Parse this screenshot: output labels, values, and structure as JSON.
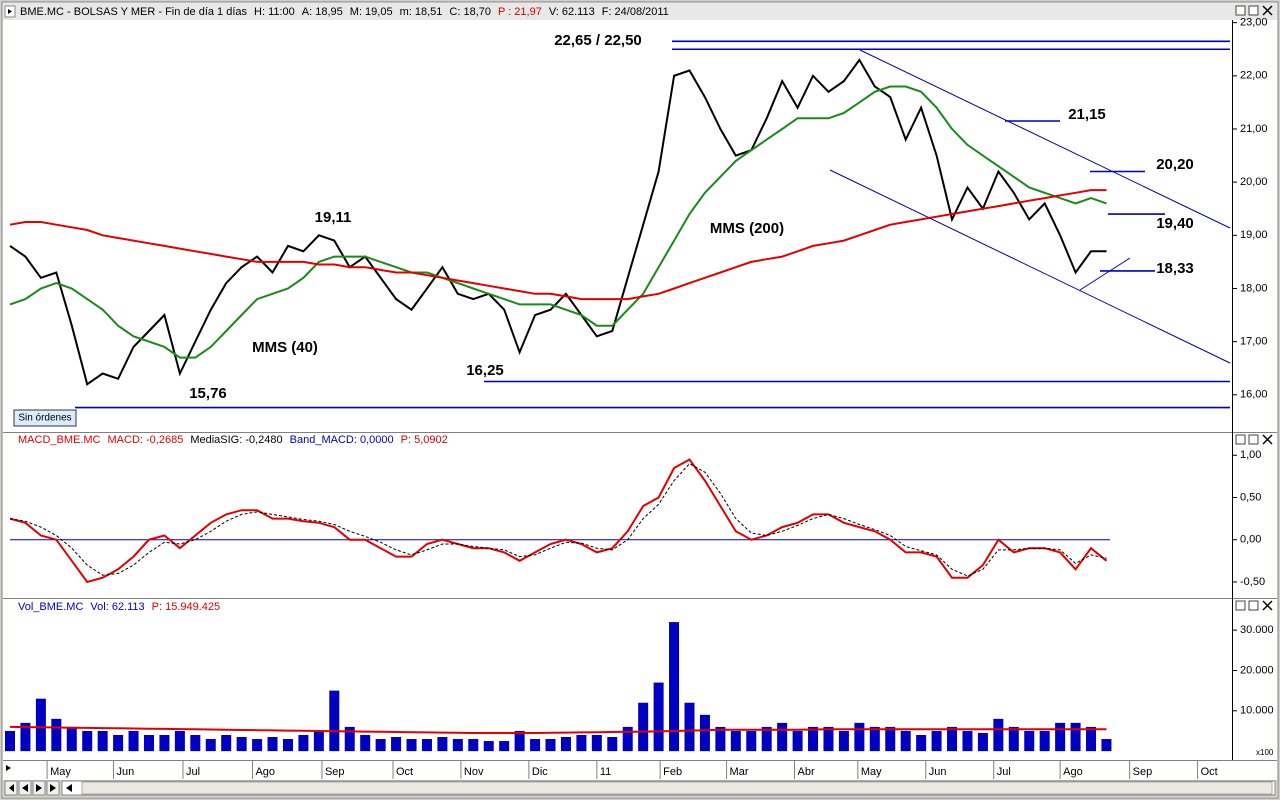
{
  "chart_data": [
    {
      "type": "line",
      "header": [
        {
          "text": "BME.MC - BOLSAS Y MER - Fin de día 1 días",
          "color": "#000000"
        },
        {
          "text": "H: 11:00",
          "color": "#000000"
        },
        {
          "text": "A: 18,95",
          "color": "#000000"
        },
        {
          "text": "M: 19,05",
          "color": "#000000"
        },
        {
          "text": "m: 18,51",
          "color": "#000000"
        },
        {
          "text": "C: 18,70",
          "color": "#000000"
        },
        {
          "text": "P : 21,97",
          "color": "#e00000"
        },
        {
          "text": "V: 62.113",
          "color": "#000000"
        },
        {
          "text": "F: 24/08/2011",
          "color": "#000000"
        }
      ],
      "x": [
        0,
        1,
        2,
        3,
        4,
        5,
        6,
        7,
        8,
        9,
        10,
        11,
        12,
        13,
        14,
        15,
        16,
        17,
        18,
        19,
        20,
        21,
        22,
        23,
        24,
        25,
        26,
        27,
        28,
        29,
        30,
        31,
        32,
        33,
        34,
        35,
        36,
        37,
        38,
        39,
        40,
        41,
        42,
        43,
        44,
        45,
        46,
        47,
        48,
        49,
        50,
        51,
        52,
        53,
        54,
        55,
        56,
        57,
        58,
        59,
        60,
        61,
        62,
        63,
        64,
        65,
        66,
        67,
        68,
        69,
        70,
        71
      ],
      "xlim": [
        0,
        79
      ],
      "ylim": [
        15.3,
        23.05
      ],
      "yticks": [
        {
          "value": 16,
          "label": "16,00"
        },
        {
          "value": 17,
          "label": "17,00"
        },
        {
          "value": 18,
          "label": "18,00"
        },
        {
          "value": 19,
          "label": "19,00"
        },
        {
          "value": 20,
          "label": "20,00"
        },
        {
          "value": 21,
          "label": "21,00"
        },
        {
          "value": 22,
          "label": "22,00"
        },
        {
          "value": 23,
          "label": "23,00"
        }
      ],
      "series": [
        {
          "color": "#000000",
          "values": [
            18.8,
            18.6,
            18.2,
            18.3,
            17.3,
            16.2,
            16.4,
            16.3,
            16.9,
            17.2,
            17.5,
            16.4,
            17.0,
            17.6,
            18.1,
            18.4,
            18.6,
            18.3,
            18.8,
            18.7,
            19.0,
            18.9,
            18.4,
            18.6,
            18.2,
            17.8,
            17.6,
            18.0,
            18.4,
            17.9,
            17.8,
            17.9,
            17.6,
            16.8,
            17.5,
            17.6,
            17.9,
            17.5,
            17.1,
            17.2,
            18.2,
            19.2,
            20.2,
            22.0,
            22.1,
            21.6,
            21.0,
            20.5,
            20.6,
            21.2,
            21.9,
            21.4,
            22.0,
            21.7,
            21.9,
            22.3,
            21.8,
            21.6,
            20.8,
            21.4,
            20.5,
            19.3,
            19.9,
            19.5,
            20.2,
            19.8,
            19.3,
            19.6,
            19.0,
            18.3,
            18.7,
            18.7
          ]
        },
        {
          "name": "MMS (40)",
          "color": "#1a8a1a",
          "values": [
            17.7,
            17.8,
            18.0,
            18.1,
            18.0,
            17.8,
            17.6,
            17.3,
            17.1,
            17.0,
            16.9,
            16.7,
            16.7,
            16.9,
            17.2,
            17.5,
            17.8,
            17.9,
            18.0,
            18.2,
            18.5,
            18.6,
            18.6,
            18.6,
            18.5,
            18.4,
            18.3,
            18.3,
            18.2,
            18.1,
            18.0,
            17.9,
            17.8,
            17.7,
            17.7,
            17.7,
            17.6,
            17.5,
            17.3,
            17.3,
            17.6,
            17.9,
            18.4,
            18.9,
            19.4,
            19.8,
            20.1,
            20.4,
            20.6,
            20.8,
            21.0,
            21.2,
            21.2,
            21.2,
            21.3,
            21.5,
            21.7,
            21.8,
            21.8,
            21.7,
            21.4,
            21.0,
            20.7,
            20.5,
            20.3,
            20.1,
            19.9,
            19.8,
            19.7,
            19.6,
            19.7,
            19.6
          ]
        },
        {
          "name": "MMS (200)",
          "color": "#e00000",
          "values": [
            19.2,
            19.25,
            19.25,
            19.2,
            19.15,
            19.1,
            19.0,
            18.95,
            18.9,
            18.85,
            18.8,
            18.75,
            18.7,
            18.65,
            18.6,
            18.55,
            18.5,
            18.5,
            18.5,
            18.5,
            18.45,
            18.45,
            18.4,
            18.4,
            18.35,
            18.3,
            18.3,
            18.25,
            18.2,
            18.15,
            18.1,
            18.05,
            18.0,
            17.95,
            17.9,
            17.9,
            17.85,
            17.8,
            17.8,
            17.8,
            17.8,
            17.85,
            17.9,
            18.0,
            18.1,
            18.2,
            18.3,
            18.4,
            18.5,
            18.55,
            18.6,
            18.7,
            18.8,
            18.85,
            18.9,
            19.0,
            19.1,
            19.2,
            19.25,
            19.3,
            19.35,
            19.4,
            19.45,
            19.5,
            19.55,
            19.6,
            19.65,
            19.7,
            19.75,
            19.8,
            19.85,
            19.85
          ]
        }
      ],
      "levels": [
        22.65,
        22.5,
        21.15,
        20.2,
        19.4,
        18.33,
        16.25,
        15.76
      ],
      "annotations": [
        "22,65 / 22,50",
        "21,15",
        "20,20",
        "19,40",
        "18,33",
        "19,11",
        "16,25",
        "15,76"
      ],
      "button": "Sin órdenes"
    },
    {
      "type": "line",
      "header": [
        {
          "text": "MACD_BME.MC",
          "color": "#e00000"
        },
        {
          "text": "MACD: -0,2685",
          "color": "#e00000"
        },
        {
          "text": "MediaSIG: -0,2480",
          "color": "#000000"
        },
        {
          "text": "Band_MACD: 0,0000",
          "color": "#0000c0"
        },
        {
          "text": "P: 5,0902",
          "color": "#e00000"
        }
      ],
      "x": [
        0,
        1,
        2,
        3,
        4,
        5,
        6,
        7,
        8,
        9,
        10,
        11,
        12,
        13,
        14,
        15,
        16,
        17,
        18,
        19,
        20,
        21,
        22,
        23,
        24,
        25,
        26,
        27,
        28,
        29,
        30,
        31,
        32,
        33,
        34,
        35,
        36,
        37,
        38,
        39,
        40,
        41,
        42,
        43,
        44,
        45,
        46,
        47,
        48,
        49,
        50,
        51,
        52,
        53,
        54,
        55,
        56,
        57,
        58,
        59,
        60,
        61,
        62,
        63,
        64,
        65,
        66,
        67,
        68,
        69,
        70,
        71
      ],
      "xlim": [
        0,
        79
      ],
      "ylim": [
        -0.69,
        1.11
      ],
      "yticks": [
        {
          "value": -0.5,
          "label": "-0,50"
        },
        {
          "value": 0,
          "label": "0,00"
        },
        {
          "value": 0.5,
          "label": "0,50"
        },
        {
          "value": 1,
          "label": "1,00"
        }
      ],
      "band": 0,
      "band_color": "#0000c0",
      "series": [
        {
          "color": "#e00000",
          "values": [
            0.25,
            0.2,
            0.05,
            0.0,
            -0.25,
            -0.5,
            -0.45,
            -0.35,
            -0.2,
            0.0,
            0.05,
            -0.1,
            0.05,
            0.2,
            0.3,
            0.35,
            0.35,
            0.25,
            0.25,
            0.22,
            0.2,
            0.15,
            0.0,
            0.0,
            -0.1,
            -0.2,
            -0.2,
            -0.05,
            0.0,
            -0.05,
            -0.1,
            -0.1,
            -0.15,
            -0.25,
            -0.15,
            -0.05,
            0.0,
            -0.05,
            -0.15,
            -0.1,
            0.1,
            0.4,
            0.5,
            0.85,
            0.95,
            0.7,
            0.4,
            0.1,
            0.0,
            0.05,
            0.15,
            0.2,
            0.3,
            0.3,
            0.2,
            0.15,
            0.1,
            0.0,
            -0.15,
            -0.15,
            -0.2,
            -0.45,
            -0.45,
            -0.3,
            0.0,
            -0.15,
            -0.1,
            -0.1,
            -0.15,
            -0.35,
            -0.1,
            -0.25
          ]
        },
        {
          "color": "#000000",
          "style": "dashed",
          "values": [
            0.25,
            0.22,
            0.15,
            0.05,
            -0.1,
            -0.3,
            -0.42,
            -0.4,
            -0.3,
            -0.15,
            -0.03,
            -0.05,
            0.0,
            0.1,
            0.22,
            0.3,
            0.33,
            0.3,
            0.27,
            0.24,
            0.22,
            0.18,
            0.1,
            0.04,
            -0.03,
            -0.12,
            -0.18,
            -0.12,
            -0.05,
            -0.05,
            -0.08,
            -0.1,
            -0.12,
            -0.2,
            -0.18,
            -0.1,
            -0.03,
            -0.04,
            -0.1,
            -0.12,
            0.0,
            0.25,
            0.42,
            0.7,
            0.9,
            0.8,
            0.55,
            0.25,
            0.08,
            0.05,
            0.1,
            0.17,
            0.25,
            0.3,
            0.25,
            0.18,
            0.12,
            0.05,
            -0.08,
            -0.13,
            -0.18,
            -0.35,
            -0.43,
            -0.35,
            -0.12,
            -0.12,
            -0.1,
            -0.1,
            -0.12,
            -0.28,
            -0.18,
            -0.22
          ]
        }
      ]
    },
    {
      "type": "bar",
      "header": [
        {
          "text": "Vol_BME.MC",
          "color": "#0000c0"
        },
        {
          "text": "Vol: 62.113",
          "color": "#0000c0"
        },
        {
          "text": "P: 15.949.425",
          "color": "#e00000"
        }
      ],
      "x": [
        0,
        1,
        2,
        3,
        4,
        5,
        6,
        7,
        8,
        9,
        10,
        11,
        12,
        13,
        14,
        15,
        16,
        17,
        18,
        19,
        20,
        21,
        22,
        23,
        24,
        25,
        26,
        27,
        28,
        29,
        30,
        31,
        32,
        33,
        34,
        35,
        36,
        37,
        38,
        39,
        40,
        41,
        42,
        43,
        44,
        45,
        46,
        47,
        48,
        49,
        50,
        51,
        52,
        53,
        54,
        55,
        56,
        57,
        58,
        59,
        60,
        61,
        62,
        63,
        64,
        65,
        66,
        67,
        68,
        69,
        70,
        71
      ],
      "xlim": [
        0,
        79
      ],
      "ylim": [
        -2200,
        34000
      ],
      "yticks": [
        {
          "value": 10000,
          "label": "10.000"
        },
        {
          "value": 20000,
          "label": "20.000"
        },
        {
          "value": 30000,
          "label": "30.000"
        }
      ],
      "unit": "x100",
      "xticks": [
        {
          "value": 2.4,
          "label": "May"
        },
        {
          "value": 6.7,
          "label": "Jun"
        },
        {
          "value": 11.2,
          "label": "Jul"
        },
        {
          "value": 15.7,
          "label": "Ago"
        },
        {
          "value": 20.2,
          "label": "Sep"
        },
        {
          "value": 24.8,
          "label": "Oct"
        },
        {
          "value": 29.2,
          "label": "Nov"
        },
        {
          "value": 33.6,
          "label": "Dic"
        },
        {
          "value": 38,
          "label": "11"
        },
        {
          "value": 42.1,
          "label": "Feb"
        },
        {
          "value": 46.4,
          "label": "Mar"
        },
        {
          "value": 50.8,
          "label": "Abr"
        },
        {
          "value": 54.9,
          "label": "May"
        },
        {
          "value": 59.3,
          "label": "Jun"
        },
        {
          "value": 63.7,
          "label": "Jul"
        },
        {
          "value": 68.0,
          "label": "Ago"
        },
        {
          "value": 72.5,
          "label": "Sep"
        },
        {
          "value": 76.9,
          "label": "Oct"
        }
      ],
      "series": [
        {
          "color": "#0000c0",
          "values": [
            5000,
            7000,
            13000,
            8000,
            6000,
            5000,
            5000,
            4000,
            5000,
            4000,
            4000,
            5000,
            4000,
            3000,
            4000,
            3500,
            3000,
            3500,
            3000,
            4000,
            5000,
            15000,
            6000,
            4000,
            3000,
            3500,
            3000,
            3000,
            3500,
            3000,
            3000,
            2500,
            2500,
            5000,
            3000,
            3000,
            3500,
            4000,
            4000,
            3500,
            6000,
            12000,
            17000,
            32000,
            12000,
            9000,
            6000,
            5000,
            5000,
            6000,
            7000,
            5000,
            6000,
            6000,
            5000,
            7000,
            6000,
            6000,
            5000,
            4000,
            5000,
            6000,
            5000,
            4500,
            8000,
            6000,
            5000,
            5000,
            7000,
            7000,
            6000,
            3000
          ]
        },
        {
          "type": "line",
          "color": "#e00000",
          "values": [
            6000,
            5950,
            5900,
            5850,
            5800,
            5750,
            5700,
            5650,
            5600,
            5550,
            5500,
            5450,
            5400,
            5350,
            5300,
            5250,
            5200,
            5150,
            5100,
            5050,
            5000,
            4950,
            4900,
            4850,
            4800,
            4750,
            4700,
            4650,
            4600,
            4550,
            4500,
            4500,
            4500,
            4500,
            4500,
            4550,
            4600,
            4650,
            4700,
            4750,
            4800,
            4850,
            4900,
            5000,
            5100,
            5200,
            5300,
            5300,
            5300,
            5300,
            5300,
            5300,
            5350,
            5400,
            5400,
            5400,
            5400,
            5400,
            5400,
            5400,
            5400,
            5400,
            5400,
            5400,
            5400,
            5400,
            5400,
            5400,
            5400,
            5400,
            5400,
            5400
          ]
        }
      ]
    }
  ]
}
